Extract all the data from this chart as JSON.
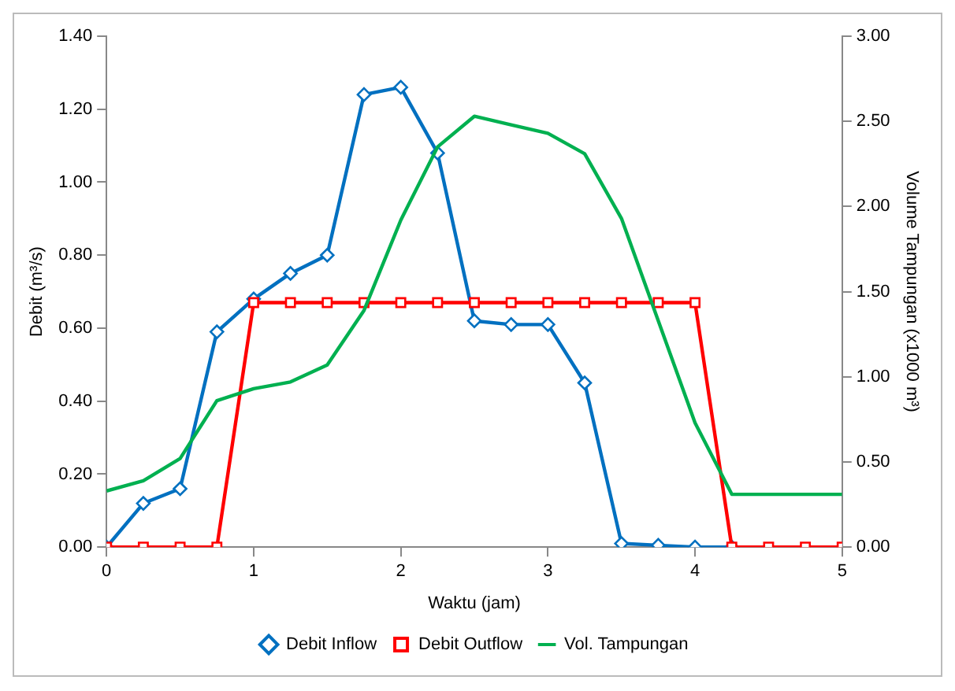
{
  "chart_data": {
    "type": "line",
    "xlabel": "Waktu (jam)",
    "ylabel": "Debit (m³/s)",
    "y2label": "Volume Tampungan (x1000 m³)",
    "xlim": [
      0,
      5
    ],
    "xticks": [
      0,
      1,
      2,
      3,
      4,
      5
    ],
    "ylim": [
      0,
      1.4
    ],
    "yticks": [
      {
        "value": 0,
        "label": "0.00"
      },
      {
        "value": 0.2,
        "label": "0.20"
      },
      {
        "value": 0.4,
        "label": "0.40"
      },
      {
        "value": 0.6,
        "label": "0.60"
      },
      {
        "value": 0.8,
        "label": "0.80"
      },
      {
        "value": 1,
        "label": "1.00"
      },
      {
        "value": 1.2,
        "label": "1.20"
      },
      {
        "value": 1.4,
        "label": "1.40"
      }
    ],
    "y2lim": [
      0,
      3
    ],
    "y2ticks": [
      {
        "value": 0,
        "label": "0.00"
      },
      {
        "value": 0.5,
        "label": "0.50"
      },
      {
        "value": 1,
        "label": "1.00"
      },
      {
        "value": 1.5,
        "label": "1.50"
      },
      {
        "value": 2,
        "label": "2.00"
      },
      {
        "value": 2.5,
        "label": "2.50"
      },
      {
        "value": 3,
        "label": "3.00"
      }
    ],
    "grid": false,
    "legend": "bottom",
    "line_style": "solid",
    "series": [
      {
        "name": "Debit Inflow",
        "color": "#0070c0",
        "marker": "diamond",
        "x": [
          0,
          0.25,
          0.5,
          0.75,
          1,
          1.25,
          1.5,
          1.75,
          2,
          2.25,
          2.5,
          2.75,
          3,
          3.25,
          3.5,
          3.75,
          4,
          4.25
        ],
        "values": [
          0,
          0.12,
          0.16,
          0.59,
          0.68,
          0.75,
          0.8,
          1.24,
          1.26,
          1.08,
          0.62,
          0.61,
          0.61,
          0.45,
          0.01,
          0.005,
          0,
          0
        ]
      },
      {
        "name": "Debit Outflow",
        "color": "#ff0000",
        "marker": "square",
        "x": [
          0,
          0.25,
          0.5,
          0.75,
          1,
          1.25,
          1.5,
          1.75,
          2,
          2.25,
          2.5,
          2.75,
          3,
          3.25,
          3.5,
          3.75,
          4,
          4.25,
          4.5,
          4.75,
          5
        ],
        "values": [
          0,
          0,
          0,
          0,
          0.67,
          0.67,
          0.67,
          0.67,
          0.67,
          0.67,
          0.67,
          0.67,
          0.67,
          0.67,
          0.67,
          0.67,
          0.67,
          0,
          0,
          0,
          0
        ]
      },
      {
        "name": "Vol. Tampungan",
        "color": "#00b050",
        "marker": "none",
        "axis": "y2",
        "x": [
          0,
          0.25,
          0.5,
          0.75,
          1,
          1.25,
          1.5,
          1.75,
          2,
          2.25,
          2.5,
          2.75,
          3,
          3.25,
          3.5,
          3.75,
          4,
          4.25,
          4.5,
          4.75,
          5
        ],
        "values": [
          0.33,
          0.39,
          0.52,
          0.86,
          0.93,
          0.97,
          1.07,
          1.39,
          1.92,
          2.35,
          2.53,
          2.48,
          2.43,
          2.31,
          1.93,
          1.33,
          0.73,
          0.31,
          0.31,
          0.31,
          0.31
        ]
      }
    ]
  }
}
